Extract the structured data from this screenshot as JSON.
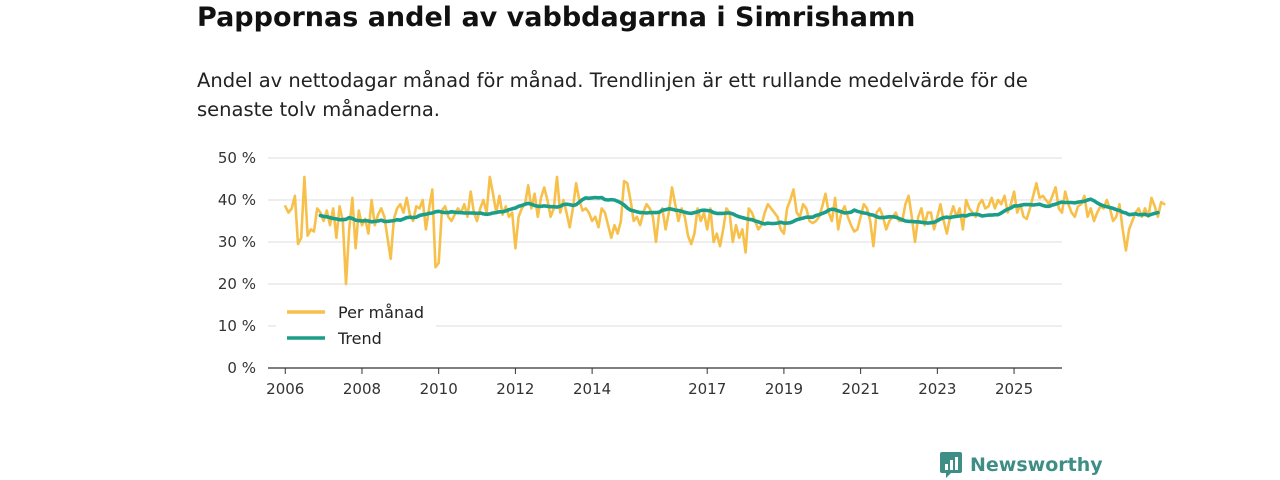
{
  "header": {
    "title": "Pappornas andel av vabbdagarna i Simrishamn",
    "subtitle": "Andel av nettodagar månad för månad. Trendlinjen är ett rullande medelvärde för de senaste tolv månaderna."
  },
  "brand": {
    "name": "Newsworthy",
    "color": "#3e8e86",
    "icon": "newsworthy-logo-icon"
  },
  "colors": {
    "monthly": "#f7c04a",
    "trend": "#1a9e8a",
    "grid": "#dddddd",
    "axis": "#333333"
  },
  "chart_data": {
    "type": "line",
    "title": "Pappornas andel av vabbdagarna i Simrishamn",
    "xlabel": "",
    "ylabel": "",
    "ylim": [
      0,
      50
    ],
    "xlim": [
      2005.55,
      2026.25
    ],
    "yticks": [
      0,
      10,
      20,
      30,
      40,
      50
    ],
    "ytick_labels": [
      "0 %",
      "10 %",
      "20 %",
      "30 %",
      "40 %",
      "50 %"
    ],
    "xticks": [
      2006,
      2008,
      2010,
      2012,
      2014,
      2017,
      2019,
      2021,
      2023,
      2025
    ],
    "xtick_labels": [
      "2006",
      "2008",
      "2010",
      "2012",
      "2014",
      "2017",
      "2019",
      "2021",
      "2023",
      "2025"
    ],
    "legend": {
      "position": "bottom-left",
      "entries": [
        "Per månad",
        "Trend"
      ]
    },
    "series": [
      {
        "name": "Per månad",
        "start": 2006.0,
        "step_months": 1,
        "values": [
          38.5,
          37,
          38,
          41,
          29.5,
          31,
          45.5,
          31.5,
          33,
          32.5,
          38,
          37,
          35,
          37.5,
          34,
          38,
          31,
          38.5,
          35,
          20,
          33,
          40.5,
          28.5,
          37.5,
          34,
          35.5,
          32,
          40,
          34,
          36.5,
          38,
          36,
          31,
          26,
          35.5,
          38,
          39,
          37,
          40.5,
          36.5,
          35,
          38.5,
          38,
          40,
          33,
          38,
          42.5,
          24,
          25,
          37.5,
          38.5,
          36,
          35,
          36.5,
          38,
          37,
          39,
          36,
          42,
          37,
          35,
          38,
          40,
          37,
          45.5,
          41.5,
          37,
          41,
          36.5,
          38.5,
          36,
          37,
          28.5,
          36,
          38,
          39,
          43.5,
          38,
          41.5,
          36,
          40.5,
          43,
          40,
          36,
          38,
          45.5,
          37,
          40,
          37,
          33.5,
          38,
          44,
          40,
          37.5,
          38,
          37,
          35,
          36,
          33.5,
          38,
          37,
          34,
          31,
          34,
          32,
          35,
          44.5,
          44,
          40,
          35,
          36,
          34,
          37,
          39,
          38,
          36,
          30,
          37,
          38,
          33,
          37,
          43,
          39,
          35,
          38,
          36,
          31.5,
          29.5,
          32,
          38,
          35,
          37,
          33,
          38,
          30,
          32,
          29,
          33,
          38,
          37,
          30,
          34,
          31,
          33,
          27.5,
          38,
          37,
          35,
          33,
          34,
          37,
          39,
          38,
          37,
          36,
          33,
          32,
          38,
          40,
          42.5,
          37,
          36,
          39,
          38,
          35,
          34.5,
          35,
          36,
          38.5,
          41.5,
          37,
          35,
          40.5,
          33,
          37,
          38.5,
          36,
          34,
          32.5,
          33,
          36,
          39,
          38,
          35,
          29,
          37,
          38,
          36,
          33,
          35,
          36,
          37,
          35,
          35,
          39,
          41,
          36,
          30,
          36,
          38,
          34,
          37,
          37,
          33,
          36,
          39,
          35,
          32,
          36,
          38.5,
          36,
          38,
          33,
          40,
          38,
          37,
          36,
          39,
          40,
          38,
          38.5,
          40.5,
          38,
          40,
          39,
          41,
          37,
          39,
          42,
          37,
          39,
          36,
          35.5,
          38,
          41,
          44,
          40.5,
          41,
          40,
          39,
          41,
          43,
          38,
          37,
          42,
          39,
          37,
          36,
          38.5,
          39,
          41,
          36,
          38,
          35,
          37,
          38.5,
          38,
          40,
          38,
          35,
          36,
          39,
          33,
          28,
          33,
          35,
          37,
          38,
          36,
          38,
          36,
          40.5,
          38.5,
          36,
          39.5,
          39
        ],
        "color": "#f7c04a"
      },
      {
        "name": "Trend",
        "start": 2006.917,
        "step_months": 1,
        "values": [
          36.3,
          36.1,
          36,
          35.8,
          35.6,
          35.5,
          35.3,
          35.3,
          35.4,
          35.8,
          35.6,
          35.2,
          35.1,
          35,
          35.1,
          35,
          34.8,
          34.9,
          35,
          35.2,
          34.9,
          34.9,
          35,
          35.1,
          35.3,
          35.2,
          35.5,
          35.8,
          35.9,
          35.8,
          35.9,
          36.3,
          36.5,
          36.6,
          36.8,
          36.9,
          37.2,
          37.3,
          37.1,
          37,
          37,
          37.2,
          37.1,
          37,
          37,
          36.9,
          36.9,
          36.9,
          36.9,
          36.8,
          36.9,
          36.7,
          36.6,
          36.7,
          36.9,
          37,
          37.2,
          37.2,
          37.4,
          37.7,
          37.9,
          38.1,
          38.5,
          38.7,
          39,
          39.2,
          39,
          38.7,
          38.5,
          38.5,
          38.6,
          38.5,
          38.4,
          38.4,
          38.3,
          38.5,
          38.9,
          39,
          38.9,
          38.7,
          38.9,
          39.5,
          40.1,
          40.5,
          40.4,
          40.5,
          40.6,
          40.5,
          40.6,
          40.1,
          40,
          40.1,
          40,
          39.7,
          39.3,
          38.8,
          38.1,
          37.6,
          37.4,
          37.2,
          37,
          37,
          36.9,
          37,
          37,
          37,
          37.1,
          37.6,
          37.7,
          37.9,
          37.8,
          37.6,
          37.5,
          37.3,
          37.1,
          36.9,
          36.8,
          37,
          37.2,
          37.5,
          37.6,
          37.5,
          37.4,
          37,
          36.8,
          36.8,
          36.8,
          36.9,
          36.9,
          36.7,
          36.3,
          36,
          35.8,
          35.6,
          35.4,
          35.3,
          35,
          34.8,
          34.5,
          34.3,
          34.5,
          34.4,
          34.4,
          34.5,
          34.7,
          34.5,
          34.5,
          34.6,
          34.9,
          35.3,
          35.5,
          35.7,
          35.9,
          35.9,
          35.9,
          36.3,
          36.5,
          36.8,
          37.1,
          37.6,
          37.8,
          37.7,
          37.4,
          37.2,
          36.9,
          37,
          37.1,
          37.6,
          37.3,
          37.1,
          36.9,
          36.8,
          36.5,
          36.4,
          36,
          35.8,
          35.8,
          35.9,
          36,
          36,
          35.9,
          35.6,
          35.3,
          35,
          34.9,
          34.9,
          34.8,
          34.8,
          34.7,
          34.6,
          34.5,
          34.6,
          34.7,
          35.1,
          35.5,
          35.8,
          35.9,
          35.8,
          36,
          36.1,
          36.2,
          36.3,
          36.2,
          36.5,
          36.6,
          36.6,
          36.5,
          36.2,
          36.3,
          36.4,
          36.4,
          36.5,
          36.5,
          36.9,
          37.4,
          37.8,
          38.1,
          38.6,
          38.6,
          38.7,
          38.9,
          38.9,
          38.9,
          38.8,
          38.9,
          39,
          38.7,
          38.5,
          38.5,
          38.8,
          39,
          39.3,
          39.5,
          39.4,
          39.4,
          39.4,
          39.3,
          39.5,
          39.6,
          39.7,
          40,
          40.2,
          39.8,
          39.3,
          38.9,
          38.6,
          38.4,
          38.2,
          38,
          37.7,
          37.5,
          37.1,
          36.9,
          36.5,
          36.6,
          36.7,
          36.5,
          36.5,
          36.6,
          36.3,
          36.6,
          36.8,
          37
        ],
        "color": "#1a9e8a"
      }
    ]
  }
}
